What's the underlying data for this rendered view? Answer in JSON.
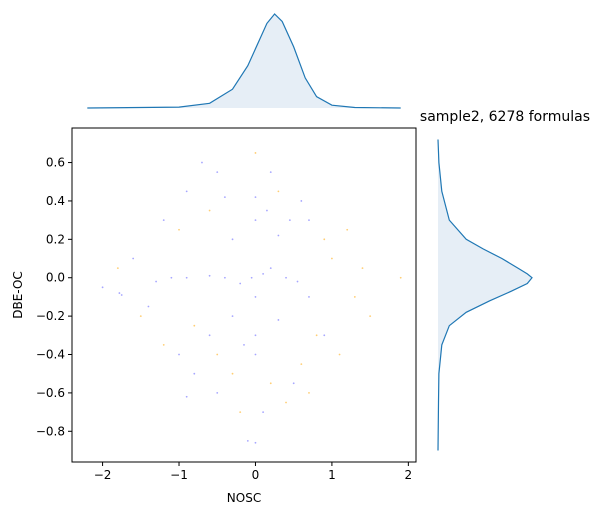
{
  "chart_data": {
    "type": "scatter",
    "title": "sample2, 6278 formulas",
    "xlabel": "NOSC",
    "ylabel": "DBE-OC",
    "xlim": [
      -2.4,
      2.1
    ],
    "ylim": [
      -0.96,
      0.78
    ],
    "xticks": [
      -2,
      -1,
      0,
      1,
      2
    ],
    "xtick_labels": [
      "−2",
      "−1",
      "0",
      "1",
      "2"
    ],
    "yticks": [
      0.6,
      0.4,
      0.2,
      0.0,
      -0.2,
      -0.4,
      -0.6,
      -0.8
    ],
    "ytick_labels": [
      "0.6",
      "0.4",
      "0.2",
      "0.0",
      "−0.2",
      "−0.4",
      "−0.6",
      "−0.8"
    ],
    "grid": false,
    "legend": "none",
    "series": [
      {
        "color": "#0000ff",
        "marker_size": "small",
        "opacity": 0.35,
        "points": [
          [
            -0.05,
            0.0
          ],
          [
            0.1,
            0.02
          ],
          [
            -0.2,
            -0.03
          ],
          [
            0.2,
            0.05
          ],
          [
            0.0,
            -0.1
          ],
          [
            -0.4,
            0.0
          ],
          [
            0.4,
            0.0
          ],
          [
            -0.6,
            0.01
          ],
          [
            0.55,
            -0.02
          ],
          [
            0.0,
            0.3
          ],
          [
            0.0,
            -0.3
          ],
          [
            0.0,
            0.42
          ],
          [
            0.0,
            -0.4
          ],
          [
            -0.3,
            0.2
          ],
          [
            0.3,
            0.22
          ],
          [
            -0.3,
            -0.2
          ],
          [
            0.3,
            -0.22
          ],
          [
            0.15,
            0.35
          ],
          [
            -0.15,
            -0.35
          ],
          [
            -0.9,
            0.0
          ],
          [
            -1.1,
            0.0
          ],
          [
            -1.3,
            -0.02
          ],
          [
            -1.78,
            -0.08
          ],
          [
            -1.75,
            -0.09
          ],
          [
            -0.8,
            -0.5
          ],
          [
            -0.9,
            -0.62
          ],
          [
            -0.5,
            -0.6
          ],
          [
            0.1,
            -0.7
          ],
          [
            -0.1,
            -0.85
          ],
          [
            0.0,
            -0.86
          ],
          [
            0.6,
            0.4
          ],
          [
            0.7,
            0.3
          ],
          [
            -0.5,
            0.55
          ],
          [
            -0.9,
            0.45
          ],
          [
            -1.4,
            -0.15
          ],
          [
            -1.6,
            0.1
          ],
          [
            -2.0,
            -0.05
          ],
          [
            0.9,
            -0.3
          ],
          [
            0.5,
            -0.55
          ],
          [
            -0.7,
            0.6
          ],
          [
            0.2,
            0.55
          ],
          [
            -0.4,
            0.42
          ],
          [
            0.45,
            0.3
          ],
          [
            -0.6,
            -0.3
          ],
          [
            0.7,
            -0.1
          ],
          [
            -1.0,
            -0.4
          ],
          [
            -1.2,
            0.3
          ]
        ]
      },
      {
        "color": "#ffa500",
        "marker_size": "small",
        "opacity": 0.55,
        "points": [
          [
            -1.5,
            -0.2
          ],
          [
            -1.2,
            -0.35
          ],
          [
            -0.3,
            -0.5
          ],
          [
            0.6,
            -0.45
          ],
          [
            0.8,
            -0.3
          ],
          [
            1.0,
            0.1
          ],
          [
            1.3,
            -0.1
          ],
          [
            1.5,
            -0.2
          ],
          [
            1.9,
            0.0
          ],
          [
            0.3,
            0.45
          ],
          [
            0.9,
            0.2
          ],
          [
            -0.8,
            -0.25
          ],
          [
            -1.8,
            0.05
          ],
          [
            0.4,
            -0.65
          ],
          [
            -0.2,
            -0.7
          ],
          [
            1.2,
            0.25
          ],
          [
            -0.5,
            -0.4
          ],
          [
            0.7,
            -0.6
          ],
          [
            1.1,
            -0.4
          ],
          [
            -1.0,
            0.25
          ],
          [
            0.0,
            0.65
          ],
          [
            -0.6,
            0.35
          ],
          [
            0.2,
            -0.55
          ],
          [
            1.4,
            0.05
          ]
        ]
      }
    ],
    "marginal_top": {
      "type": "kde",
      "variable": "NOSC",
      "color": "#1f77b4",
      "fill": "#e6eef6",
      "x": [
        -2.2,
        -1.0,
        -0.6,
        -0.3,
        -0.1,
        0.05,
        0.15,
        0.25,
        0.35,
        0.5,
        0.65,
        0.8,
        1.0,
        1.3,
        1.9
      ],
      "density": [
        0.0,
        0.01,
        0.05,
        0.2,
        0.45,
        0.72,
        0.9,
        1.0,
        0.92,
        0.65,
        0.32,
        0.12,
        0.03,
        0.005,
        0.0
      ]
    },
    "marginal_right": {
      "type": "kde",
      "variable": "DBE-OC",
      "color": "#1f77b4",
      "fill": "#e6eef6",
      "y": [
        0.72,
        0.6,
        0.45,
        0.3,
        0.2,
        0.15,
        0.1,
        0.05,
        0.02,
        0.0,
        -0.03,
        -0.07,
        -0.12,
        -0.18,
        -0.25,
        -0.35,
        -0.5,
        -0.65,
        -0.9
      ],
      "density": [
        0.0,
        0.01,
        0.04,
        0.12,
        0.3,
        0.48,
        0.68,
        0.85,
        0.95,
        1.0,
        0.95,
        0.78,
        0.55,
        0.3,
        0.12,
        0.04,
        0.01,
        0.005,
        0.0
      ]
    }
  }
}
